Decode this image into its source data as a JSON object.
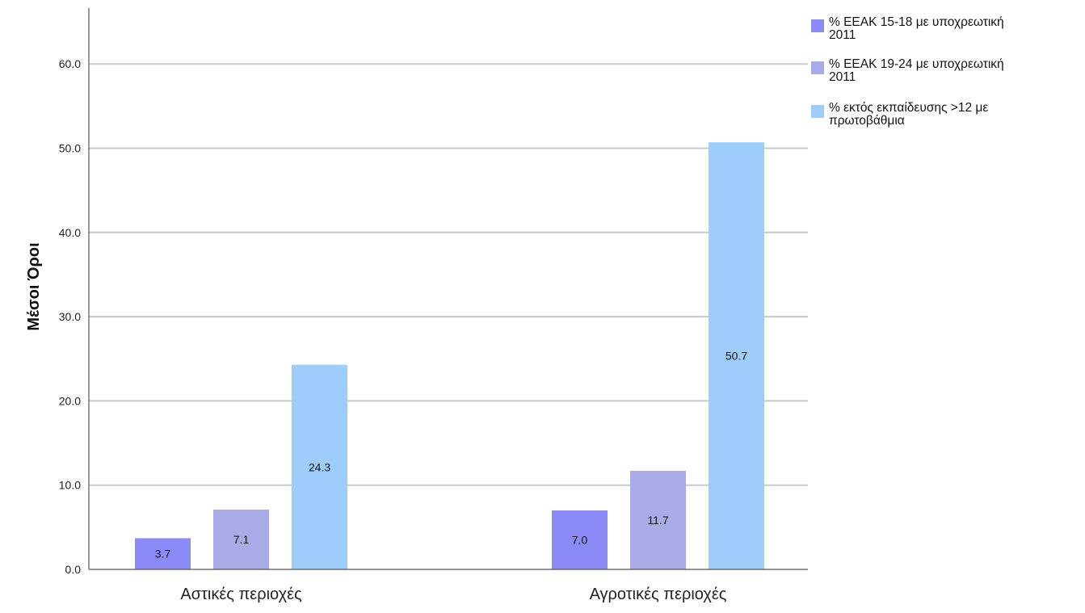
{
  "chart_data": {
    "type": "bar",
    "ylabel": "Μέσοι Όροι",
    "xlabel": "",
    "categories": [
      "Αστικές περιοχές",
      "Αγροτικές περιοχές"
    ],
    "series": [
      {
        "name_lines": [
          "% ΕΕΑΚ 15-18 με υποχρεωτική",
          "2011"
        ],
        "values": [
          3.7,
          7.0
        ],
        "value_labels": [
          "3.7",
          "7.0"
        ],
        "color": "#8b8bf7"
      },
      {
        "name_lines": [
          "% ΕΕΑΚ 19-24 με υποχρεωτική",
          "2011"
        ],
        "values": [
          7.1,
          11.7
        ],
        "value_labels": [
          "7.1",
          "11.7"
        ],
        "color": "#a9abe6"
      },
      {
        "name_lines": [
          "% εκτός εκπαίδευσης >12 με",
          "πρωτοβάθμια"
        ],
        "values": [
          24.3,
          50.7
        ],
        "value_labels": [
          "24.3",
          "50.7"
        ],
        "color": "#9ccdfb"
      }
    ],
    "yticks": [
      "0.0",
      "10.0",
      "20.0",
      "30.0",
      "40.0",
      "50.0",
      "60.0"
    ],
    "ylim": [
      0,
      60
    ],
    "ymax_axis": 67,
    "grid": true,
    "legend_position": "top-right"
  }
}
